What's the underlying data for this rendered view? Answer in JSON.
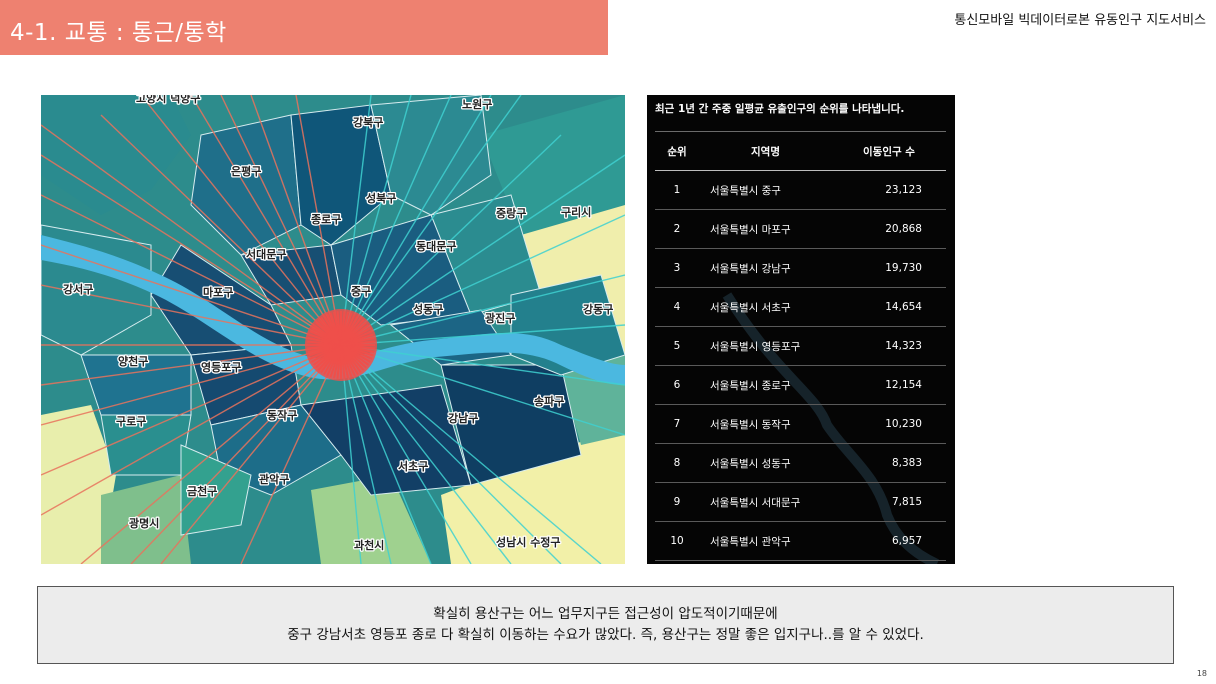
{
  "header": {
    "title": "4-1. 교통 : 통근/통학",
    "service_name": "통신모바일 빅데이터로본 유동인구 지도서비스"
  },
  "map": {
    "labels": [
      "고양시 덕양구",
      "노원구",
      "강북구",
      "은평구",
      "성북구",
      "종로구",
      "중랑구",
      "구리시",
      "서대문구",
      "동대문구",
      "강서구",
      "마포구",
      "중구",
      "성동구",
      "광진구",
      "강동구",
      "양천구",
      "영등포구",
      "송파구",
      "구로구",
      "동작구",
      "강남구",
      "서초구",
      "관악구",
      "금천구",
      "광명시",
      "과천시",
      "성남시 수정구"
    ],
    "colors": {
      "river": "#4bb8e0",
      "flow_line": "#e8735d",
      "teal_line": "#3fd1d1",
      "hub": "#ee4f4a"
    }
  },
  "ranking": {
    "caption": "최근 1년 간 주중 일평균 유출인구의 순위를 나타냅니다.",
    "headers": {
      "rank": "순위",
      "region": "지역명",
      "count": "이동인구 수"
    },
    "rows": [
      {
        "rank": "1",
        "region": "서울특별시 중구",
        "count": "23,123"
      },
      {
        "rank": "2",
        "region": "서울특별시 마포구",
        "count": "20,868"
      },
      {
        "rank": "3",
        "region": "서울특별시 강남구",
        "count": "19,730"
      },
      {
        "rank": "4",
        "region": "서울특별시 서초구",
        "count": "14,654"
      },
      {
        "rank": "5",
        "region": "서울특별시 영등포구",
        "count": "14,323"
      },
      {
        "rank": "6",
        "region": "서울특별시 종로구",
        "count": "12,154"
      },
      {
        "rank": "7",
        "region": "서울특별시 동작구",
        "count": "10,230"
      },
      {
        "rank": "8",
        "region": "서울특별시 성동구",
        "count": "8,383"
      },
      {
        "rank": "9",
        "region": "서울특별시 서대문구",
        "count": "7,815"
      },
      {
        "rank": "10",
        "region": "서울특별시 관악구",
        "count": "6,957"
      }
    ]
  },
  "note": {
    "line1": "확실히 용산구는 어느 업무지구든 접근성이 압도적이기때문에",
    "line2": "중구 강남서초 영등포 종로 다 확실히 이동하는 수요가 많았다. 즉, 용산구는 정말 좋은 입지구나..를 알 수 있었다."
  },
  "page_number": "18"
}
